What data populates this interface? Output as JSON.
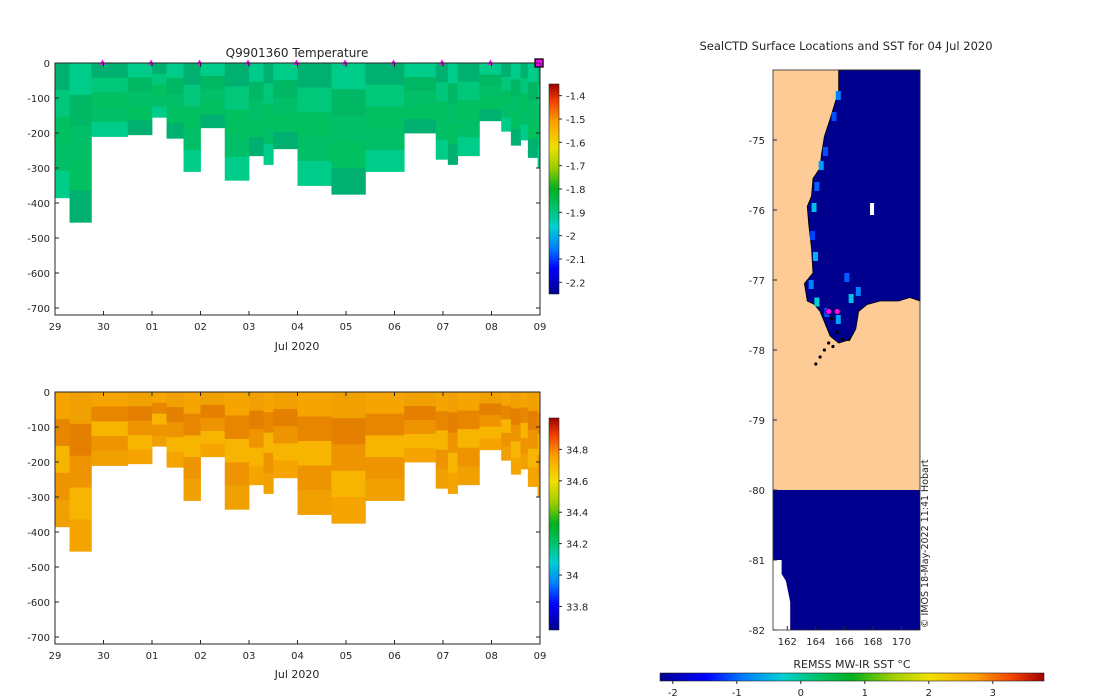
{
  "colors": {
    "water_profiles": [
      "#00b070",
      "#00bf66",
      "#00c77a",
      "#00cc8a",
      "#00c060",
      "#00b864"
    ],
    "salinity_profiles": [
      "#f5a400",
      "#ee9400",
      "#e88600",
      "#f0a000",
      "#f7b400",
      "#e57f00"
    ],
    "land": "#fccb96",
    "ocean_cold": "#00008f",
    "axis": "#262626",
    "marker": "#ff00ff"
  },
  "chart_data": [
    {
      "type": "heatmap",
      "title": "Q9901360  Temperature",
      "xlabel": "Jul 2020",
      "x_ticks": [
        "29",
        "30",
        "01",
        "02",
        "03",
        "04",
        "05",
        "06",
        "07",
        "08",
        "09"
      ],
      "ylim": [
        -720,
        0
      ],
      "y_ticks": [
        "0",
        "-100",
        "-200",
        "-300",
        "-400",
        "-500",
        "-600",
        "-700"
      ],
      "x_range_days": [
        0,
        10
      ],
      "profiles": [
        {
          "t": 0.0,
          "depth": 385
        },
        {
          "t": 0.3,
          "depth": 455
        },
        {
          "t": 0.75,
          "depth": 210
        },
        {
          "t": 1.5,
          "depth": 205
        },
        {
          "t": 2.0,
          "depth": 155
        },
        {
          "t": 2.3,
          "depth": 215
        },
        {
          "t": 2.65,
          "depth": 310
        },
        {
          "t": 3.0,
          "depth": 185
        },
        {
          "t": 3.5,
          "depth": 335
        },
        {
          "t": 4.0,
          "depth": 265
        },
        {
          "t": 4.3,
          "depth": 290
        },
        {
          "t": 4.5,
          "depth": 245
        },
        {
          "t": 5.0,
          "depth": 350
        },
        {
          "t": 5.7,
          "depth": 375
        },
        {
          "t": 6.4,
          "depth": 310
        },
        {
          "t": 7.2,
          "depth": 200
        },
        {
          "t": 7.85,
          "depth": 275
        },
        {
          "t": 8.1,
          "depth": 290
        },
        {
          "t": 8.3,
          "depth": 265
        },
        {
          "t": 8.75,
          "depth": 165
        },
        {
          "t": 9.2,
          "depth": 195
        },
        {
          "t": 9.4,
          "depth": 235
        },
        {
          "t": 9.6,
          "depth": 220
        },
        {
          "t": 9.75,
          "depth": 270
        },
        {
          "t": 9.95,
          "depth": 300
        }
      ],
      "surface_markers_days": [
        1,
        2,
        3,
        4,
        5,
        6,
        7,
        8,
        9,
        10
      ],
      "last_marker_day": 10,
      "colorbar": {
        "min": -2.25,
        "max": -1.35,
        "ticks": [
          "-1.4",
          "-1.5",
          "-1.6",
          "-1.7",
          "-1.8",
          "-1.9",
          "-2",
          "-2.1",
          "-2.2"
        ]
      }
    },
    {
      "type": "heatmap",
      "title": "",
      "xlabel": "Jul 2020",
      "x_ticks": [
        "29",
        "30",
        "01",
        "02",
        "03",
        "04",
        "05",
        "06",
        "07",
        "08",
        "09"
      ],
      "ylim": [
        -720,
        0
      ],
      "y_ticks": [
        "0",
        "-100",
        "-200",
        "-300",
        "-400",
        "-500",
        "-600",
        "-700"
      ],
      "x_range_days": [
        0,
        10
      ],
      "colorbar": {
        "min": 33.65,
        "max": 35.0,
        "ticks": [
          "34.8",
          "34.6",
          "34.4",
          "34.2",
          "34",
          "33.8"
        ]
      }
    },
    {
      "type": "heatmap",
      "title": "SealCTD Surface Locations and SST for 04 Jul 2020",
      "xlabel": "",
      "x_ticks": [
        "162",
        "164",
        "166",
        "168",
        "170"
      ],
      "xlim": [
        161,
        171.3
      ],
      "y_ticks": [
        "-75",
        "-76",
        "-77",
        "-78",
        "-79",
        "-80",
        "-81",
        "-82"
      ],
      "ylim": [
        -82,
        -74
      ],
      "colorbar": {
        "label": "REMSS MW-IR SST °C",
        "min": -2.2,
        "max": 3.8,
        "ticks": [
          "-2",
          "-1",
          "0",
          "1",
          "2",
          "3"
        ]
      },
      "credit": "© IMOS 18-May-2022 11:41 Hobart",
      "seal_positions": [
        {
          "lon": 164.8,
          "lat": -77.45
        },
        {
          "lon": 165.4,
          "lat": -77.45
        },
        {
          "lon": 165.1,
          "lat": -77.55
        },
        {
          "lon": 165.5,
          "lat": -77.75
        },
        {
          "lon": 165.9,
          "lat": -77.85
        },
        {
          "lon": 164.9,
          "lat": -77.9
        },
        {
          "lon": 164.6,
          "lat": -78.0
        },
        {
          "lon": 164.3,
          "lat": -78.1
        },
        {
          "lon": 164.0,
          "lat": -78.2
        },
        {
          "lon": 166.3,
          "lat": -77.85
        },
        {
          "lon": 165.2,
          "lat": -77.95
        }
      ],
      "current_positions": [
        {
          "lon": 164.9,
          "lat": -77.45
        },
        {
          "lon": 165.5,
          "lat": -77.45
        }
      ]
    }
  ]
}
